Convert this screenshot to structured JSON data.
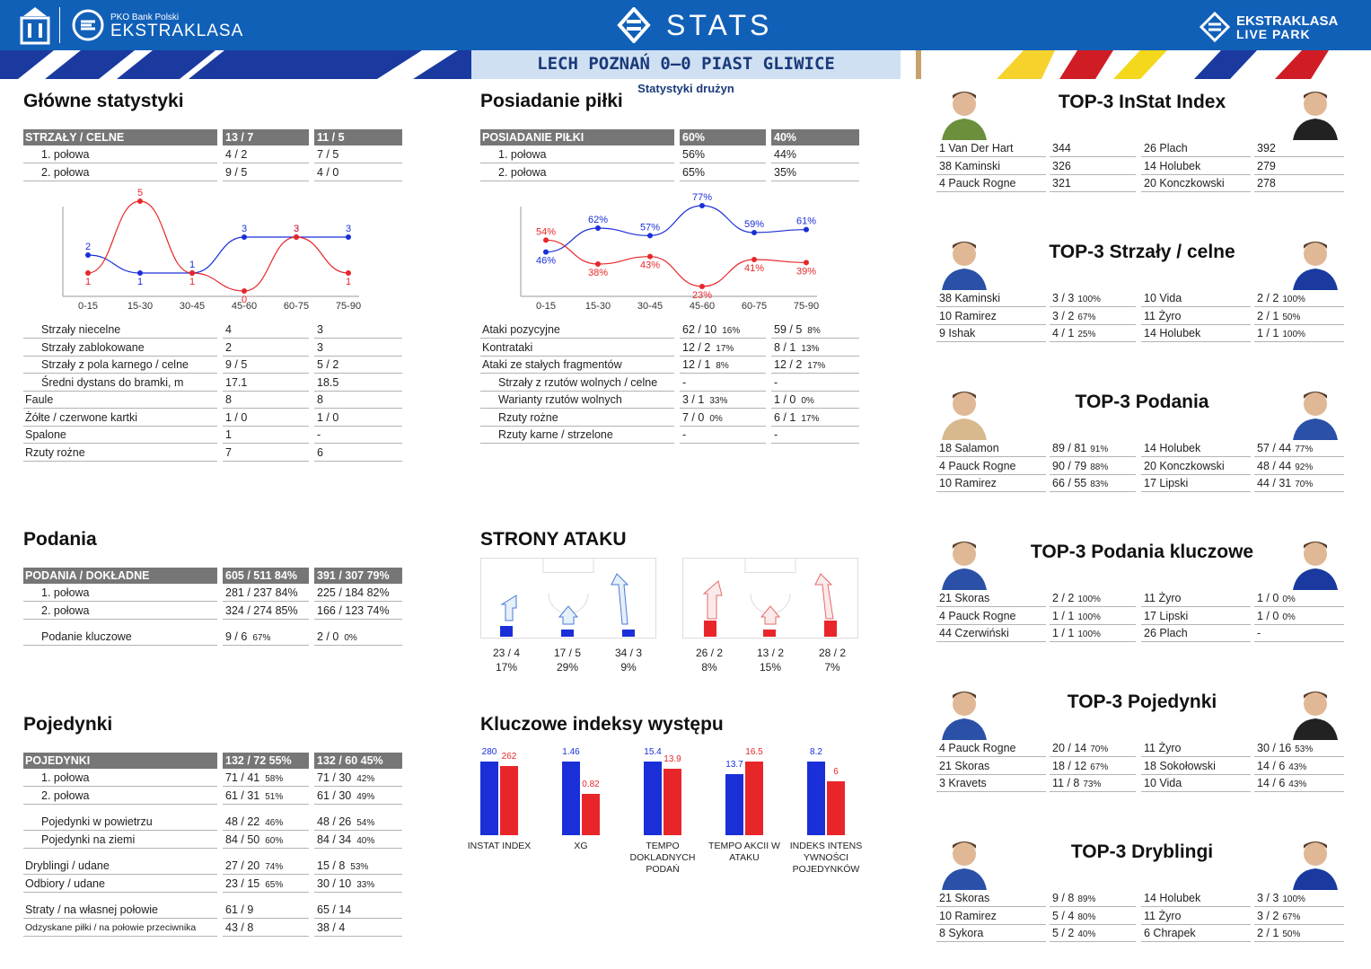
{
  "header": {
    "bank": "PKO Bank Polski",
    "league": "EKSTRAKLASA",
    "stats": "STATS",
    "right_logo": "EKSTRAKLASA",
    "right_logo2": "LIVE PARK",
    "match": "LECH POZNAŃ 0–0 PIAST GLIWICE",
    "subtitle": "Statystyki drużyn",
    "colors": {
      "blue": "#1160b8",
      "home": "#1a2fd8",
      "away": "#e8262a"
    }
  },
  "main": {
    "title": "Główne statystyki",
    "header": [
      "STRZAŁY / CELNE",
      "13 / 7",
      "11 / 5"
    ],
    "halves": [
      [
        "1. połowa",
        "4 / 2",
        "7 / 5"
      ],
      [
        "2. połowa",
        "9 / 5",
        "4 / 0"
      ]
    ],
    "rows": [
      [
        "Strzały niecelne",
        "4",
        "3"
      ],
      [
        "Strzały zablokowane",
        "2",
        "3"
      ],
      [
        "Strzały z pola karnego / celne",
        "9 / 5",
        "5 / 2"
      ],
      [
        "Średni dystans do bramki, m",
        "17.1",
        "18.5"
      ],
      [
        "Faule",
        "8",
        "8"
      ],
      [
        "Żółte / czerwone kartki",
        "1 / 0",
        "1 / 0"
      ],
      [
        "Spalone",
        "1",
        "-"
      ],
      [
        "Rzuty rożne",
        "7",
        "6"
      ]
    ]
  },
  "shots_chart": {
    "type": "line",
    "categories": [
      "0-15",
      "15-30",
      "30-45",
      "45-60",
      "60-75",
      "75-90"
    ],
    "series": [
      {
        "values": [
          2,
          1,
          1,
          3,
          3,
          3
        ]
      },
      {
        "values": [
          1,
          5,
          1,
          0,
          3,
          1
        ]
      }
    ],
    "ylim": [
      0,
      5
    ]
  },
  "possession": {
    "title": "Posiadanie piłki",
    "header": [
      "POSIADANIE PIŁKI",
      "60%",
      "40%"
    ],
    "halves": [
      [
        "1. połowa",
        "56%",
        "44%"
      ],
      [
        "2. połowa",
        "65%",
        "35%"
      ]
    ],
    "rows": [
      [
        "Ataki pozycyjne",
        "62 / 10",
        "16%",
        "59 / 5",
        "8%"
      ],
      [
        "Kontrataki",
        "12 / 2",
        "17%",
        "8 / 1",
        "13%"
      ],
      [
        "Ataki ze stałych fragmentów",
        "12 / 1",
        "8%",
        "12 / 2",
        "17%"
      ],
      [
        "Strzały z rzutów wolnych / celne",
        "-",
        "",
        "-",
        ""
      ],
      [
        "Warianty rzutów wolnych",
        "3 / 1",
        "33%",
        "1 / 0",
        "0%"
      ],
      [
        "Rzuty rożne",
        "7 / 0",
        "0%",
        "6 / 1",
        "17%"
      ],
      [
        "Rzuty karne / strzelone",
        "-",
        "",
        "-",
        ""
      ]
    ]
  },
  "possession_chart": {
    "type": "line",
    "categories": [
      "0-15",
      "15-30",
      "30-45",
      "45-60",
      "60-75",
      "75-90"
    ],
    "series": [
      {
        "values": [
          46,
          62,
          57,
          77,
          59,
          61
        ]
      },
      {
        "values": [
          54,
          38,
          43,
          23,
          41,
          39
        ]
      }
    ],
    "labels_home": [
      "46%",
      "62%",
      "57%",
      "77%",
      "59%",
      "61%"
    ],
    "labels_away": [
      "54%",
      "38%",
      "43%",
      "23%",
      "41%",
      "39%"
    ]
  },
  "passes": {
    "title": "Podania",
    "header": [
      "PODANIA / DOKŁADNE",
      "605 / 511 84%",
      "391 / 307 79%"
    ],
    "rows": [
      [
        "1. połowa",
        "281 / 237 84%",
        "225 / 184 82%"
      ],
      [
        "2. połowa",
        "324 / 274 85%",
        "166 / 123 74%"
      ],
      [
        "Podanie kluczowe",
        "9 / 6",
        "67%",
        "2 / 0",
        "0%"
      ]
    ]
  },
  "duels": {
    "title": "Pojedynki",
    "header": [
      "POJEDYNKI",
      "132 / 72 55%",
      "132 / 60 45%"
    ],
    "rows": [
      [
        "1. połowa",
        "71 / 41",
        "58%",
        "71 / 30",
        "42%"
      ],
      [
        "2. połowa",
        "61 / 31",
        "51%",
        "61 / 30",
        "49%"
      ],
      [
        "Pojedynki w powietrzu",
        "48 / 22",
        "46%",
        "48 / 26",
        "54%"
      ],
      [
        "Pojedynki na ziemi",
        "84 / 50",
        "60%",
        "84 / 34",
        "40%"
      ],
      [
        "Dryblingi / udane",
        "27 / 20",
        "74%",
        "15 / 8",
        "53%"
      ],
      [
        "Odbiory / udane",
        "23 / 15",
        "65%",
        "30 / 10",
        "33%"
      ],
      [
        "Straty / na własnej połowie",
        "61 / 9",
        "",
        "65 / 14",
        ""
      ],
      [
        "Odzyskane piłki / na połowie przeciwnika",
        "43 / 8",
        "",
        "38 / 4",
        ""
      ]
    ]
  },
  "attack": {
    "title": "STRONY ATAKU",
    "home": [
      [
        "23 / 4",
        "17%"
      ],
      [
        "17 / 5",
        "29%"
      ],
      [
        "34 / 3",
        "9%"
      ]
    ],
    "away": [
      [
        "26 / 2",
        "8%"
      ],
      [
        "13 / 2",
        "15%"
      ],
      [
        "28 / 2",
        "7%"
      ]
    ]
  },
  "kpi": {
    "title": "Kluczowe indeksy występu",
    "items": [
      {
        "label": "INSTAT INDEX",
        "home": "280",
        "away": "262",
        "h": 280,
        "a": 262,
        "max": 280
      },
      {
        "label": "XG",
        "home": "1.46",
        "away": "0.82",
        "h": 1.46,
        "a": 0.82,
        "max": 1.46
      },
      {
        "label": "TEMPO DOKLADNYCH PODAŃ",
        "home": "15.4",
        "away": "13.9",
        "h": 15.4,
        "a": 13.9,
        "max": 15.4
      },
      {
        "label": "TEMPO AKCII W ATAKU",
        "home": "13.7",
        "away": "16.5",
        "h": 13.7,
        "a": 16.5,
        "max": 16.5
      },
      {
        "label": "INDEKS INTENS YWNOŚCI POJEDYNKÓW",
        "home": "8.2",
        "away": "6",
        "h": 8.2,
        "a": 6,
        "max": 8.2
      }
    ]
  },
  "tops": [
    {
      "title": "TOP-3 InStat Index",
      "rows": [
        [
          "1",
          "Van Der Hart",
          "344",
          "",
          "26",
          "Plach",
          "392",
          ""
        ],
        [
          "38",
          "Kaminski",
          "326",
          "",
          "14",
          "Holubek",
          "279",
          ""
        ],
        [
          "4",
          "Pauck Rogne",
          "321",
          "",
          "20",
          "Konczkowski",
          "278",
          ""
        ]
      ]
    },
    {
      "title": "TOP-3 Strzały / celne",
      "rows": [
        [
          "38",
          "Kaminski",
          "3 / 3",
          "100%",
          "10",
          "Vida",
          "2 / 2",
          "100%"
        ],
        [
          "10",
          "Ramirez",
          "3 / 2",
          "67%",
          "11",
          "Żyro",
          "2 / 1",
          "50%"
        ],
        [
          "9",
          "Ishak",
          "4 / 1",
          "25%",
          "14",
          "Holubek",
          "1 / 1",
          "100%"
        ]
      ]
    },
    {
      "title": "TOP-3 Podania",
      "rows": [
        [
          "18",
          "Salamon",
          "89 / 81",
          "91%",
          "14",
          "Holubek",
          "57 / 44",
          "77%"
        ],
        [
          "4",
          "Pauck Rogne",
          "90 / 79",
          "88%",
          "20",
          "Konczkowski",
          "48 / 44",
          "92%"
        ],
        [
          "10",
          "Ramirez",
          "66 / 55",
          "83%",
          "17",
          "Lipski",
          "44 / 31",
          "70%"
        ]
      ]
    },
    {
      "title": "TOP-3 Podania kluczowe",
      "rows": [
        [
          "21",
          "Skoras",
          "2 / 2",
          "100%",
          "11",
          "Żyro",
          "1 / 0",
          "0%"
        ],
        [
          "4",
          "Pauck Rogne",
          "1 / 1",
          "100%",
          "17",
          "Lipski",
          "1 / 0",
          "0%"
        ],
        [
          "44",
          "Czerwiński",
          "1 / 1",
          "100%",
          "26",
          "Plach",
          "-",
          ""
        ]
      ]
    },
    {
      "title": "TOP-3 Pojedynki",
      "rows": [
        [
          "4",
          "Pauck Rogne",
          "20 / 14",
          "70%",
          "11",
          "Żyro",
          "30 / 16",
          "53%"
        ],
        [
          "21",
          "Skoras",
          "18 / 12",
          "67%",
          "18",
          "Sokołowski",
          "14 / 6",
          "43%"
        ],
        [
          "3",
          "Kravets",
          "11 / 8",
          "73%",
          "10",
          "Vida",
          "14 / 6",
          "43%"
        ]
      ]
    },
    {
      "title": "TOP-3 Dryblingi",
      "rows": [
        [
          "21",
          "Skoras",
          "9 / 8",
          "89%",
          "14",
          "Holubek",
          "3 / 3",
          "100%"
        ],
        [
          "10",
          "Ramirez",
          "5 / 4",
          "80%",
          "11",
          "Żyro",
          "3 / 2",
          "67%"
        ],
        [
          "8",
          "Sykora",
          "5 / 2",
          "40%",
          "6",
          "Chrapek",
          "2 / 1",
          "50%"
        ]
      ]
    }
  ]
}
